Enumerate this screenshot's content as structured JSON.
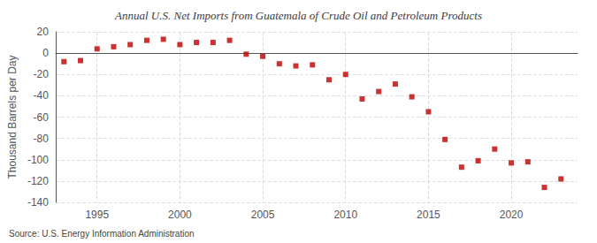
{
  "chart_data": {
    "type": "scatter",
    "title": "Annual U.S. Net Imports from Guatemala of Crude Oil and Petroleum Products",
    "ylabel": "Thousand Barrels per Day",
    "annotations": [
      "Source: U.S. Energy Information Administration"
    ],
    "x": [
      1993,
      1994,
      1995,
      1996,
      1997,
      1998,
      1999,
      2000,
      2001,
      2002,
      2003,
      2004,
      2005,
      2006,
      2007,
      2008,
      2009,
      2010,
      2011,
      2012,
      2013,
      2014,
      2015,
      2016,
      2017,
      2018,
      2019,
      2020,
      2021,
      2022,
      2023
    ],
    "values": [
      -8,
      -7,
      4,
      6,
      8,
      12,
      13,
      8,
      10,
      10,
      12,
      -1,
      -3,
      -10,
      -12,
      -11,
      -25,
      -20,
      -43,
      -36,
      -29,
      -41,
      -55,
      -81,
      -107,
      -101,
      -90,
      -103,
      -102,
      -126,
      -118
    ],
    "color": "#bb0000",
    "marker": "square",
    "xlim": [
      1992.5,
      2024
    ],
    "xticks": [
      1995,
      2000,
      2005,
      2010,
      2015,
      2020
    ],
    "ylim": [
      -140,
      20
    ],
    "yticks": [
      -140,
      -120,
      -100,
      -80,
      -60,
      -40,
      -20,
      0,
      20
    ],
    "grid": true
  }
}
